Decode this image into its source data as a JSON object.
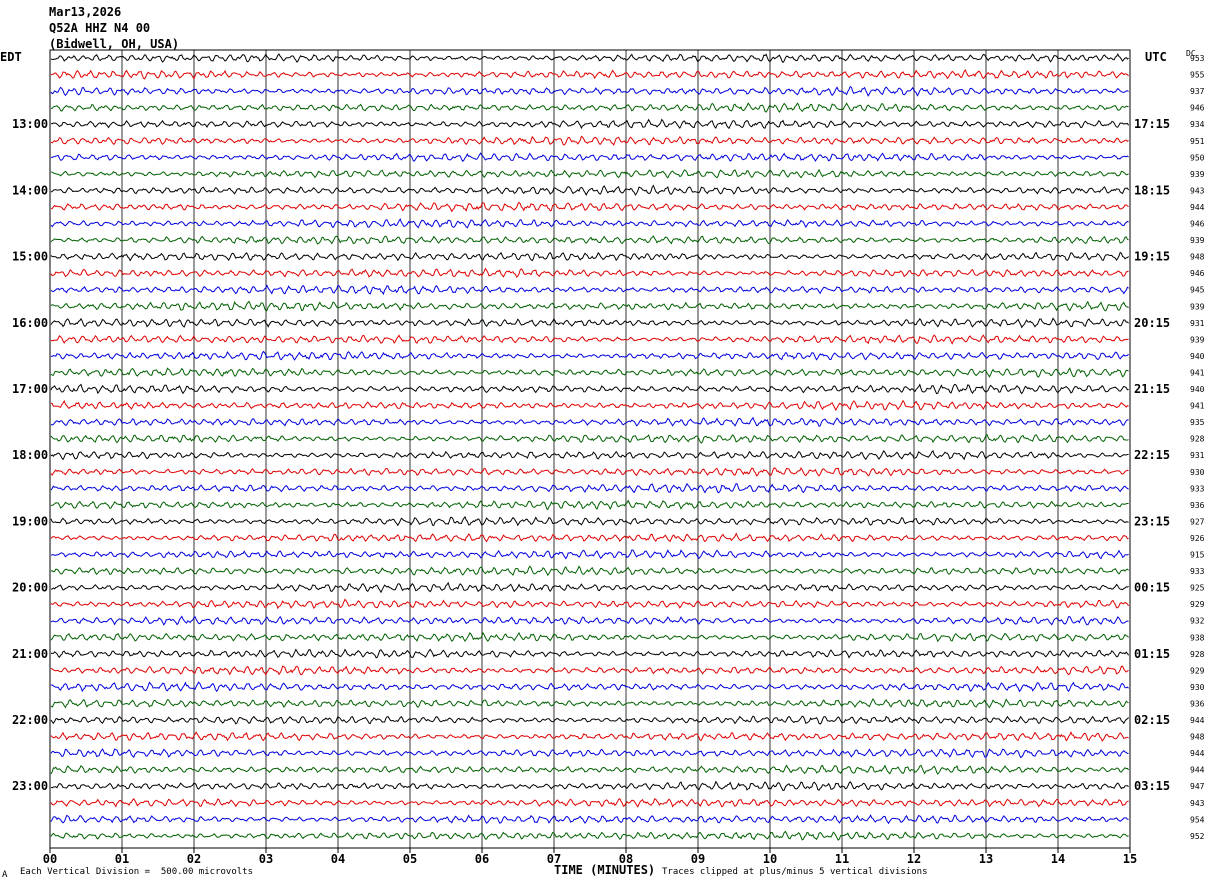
{
  "header": {
    "date": "Mar13,2026",
    "station": "Q52A HHZ N4 00",
    "location": "(Bidwell, OH, USA)"
  },
  "left_tz": "EDT",
  "right_tz": "UTC",
  "dc_label": "DC",
  "footer": {
    "scale_note": "Each Vertical Division =  500.00 microvolts",
    "xlabel": "TIME (MINUTES)",
    "clip_note": "Traces clipped at plus/minus 5 vertical divisions",
    "corner_mark": "A"
  },
  "colors": {
    "cycle": [
      "#000000",
      "#e00000",
      "#0000e0",
      "#006000"
    ],
    "grid": "#000000"
  },
  "chart_data": {
    "type": "line",
    "title": "",
    "xlabel": "TIME (MINUTES)",
    "xlim": [
      0,
      15
    ],
    "x_ticks": [
      "00",
      "01",
      "02",
      "03",
      "04",
      "05",
      "06",
      "07",
      "08",
      "09",
      "10",
      "11",
      "12",
      "13",
      "14",
      "15"
    ],
    "rows_per_hour": 4,
    "left_hour_labels": [
      "13:00",
      "14:00",
      "15:00",
      "16:00",
      "17:00",
      "18:00",
      "19:00",
      "20:00",
      "21:00",
      "22:00",
      "23:00"
    ],
    "right_hour_labels": [
      "17:15",
      "18:15",
      "19:15",
      "20:15",
      "21:15",
      "22:15",
      "23:15",
      "00:15",
      "01:15",
      "02:15",
      "03:15"
    ],
    "dc_values": [
      "953",
      "955",
      "937",
      "946",
      "934",
      "951",
      "950",
      "939",
      "943",
      "944",
      "946",
      "939",
      "948",
      "946",
      "945",
      "939",
      "931",
      "939",
      "940",
      "941",
      "940",
      "941",
      "935",
      "928",
      "931",
      "930",
      "933",
      "936",
      "927",
      "926",
      "915",
      "933",
      "925",
      "929",
      "932",
      "938",
      "928",
      "929",
      "930",
      "936",
      "944",
      "948",
      "944",
      "944",
      "947",
      "943",
      "954",
      "952"
    ]
  }
}
